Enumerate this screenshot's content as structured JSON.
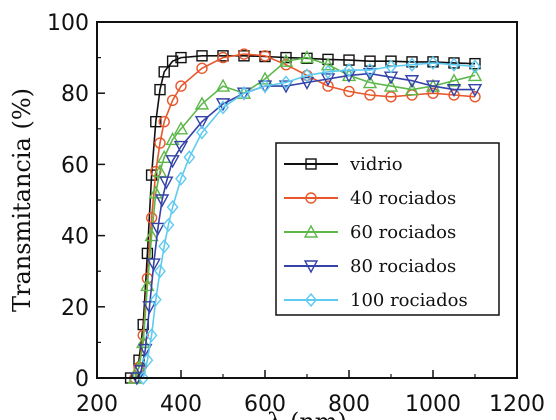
{
  "chart_data": {
    "type": "line",
    "title": "",
    "xlabel": "λ (nm)",
    "ylabel": "Transmitancia (%)",
    "xlim": [
      200,
      1200
    ],
    "ylim": [
      0,
      100
    ],
    "xticks": [
      200,
      400,
      600,
      800,
      1000,
      1200
    ],
    "yticks": [
      0,
      20,
      40,
      60,
      80,
      100
    ],
    "grid": false,
    "legend_position": "center-right",
    "series": [
      {
        "name": "vidrio",
        "color": "#111111",
        "marker": "square",
        "x": [
          280,
          300,
          310,
          320,
          330,
          340,
          350,
          360,
          380,
          400,
          450,
          500,
          550,
          600,
          650,
          700,
          750,
          800,
          850,
          900,
          950,
          1000,
          1050,
          1100
        ],
        "y": [
          0,
          5,
          15,
          35,
          57,
          72,
          81,
          86,
          89,
          90,
          90.5,
          90.5,
          90.5,
          90.3,
          90,
          89.8,
          89.5,
          89.3,
          89,
          89,
          88.8,
          88.8,
          88.5,
          88.3
        ]
      },
      {
        "name": "40 rociados",
        "color": "#e8582c",
        "marker": "circle",
        "x": [
          290,
          300,
          310,
          320,
          330,
          340,
          350,
          360,
          380,
          400,
          450,
          500,
          550,
          600,
          650,
          700,
          750,
          800,
          850,
          900,
          950,
          1000,
          1050,
          1100
        ],
        "y": [
          0,
          3,
          12,
          28,
          45,
          58,
          66,
          72,
          78,
          82,
          87,
          90,
          91,
          90.5,
          88,
          85,
          82,
          80.5,
          79.5,
          79,
          79.5,
          80,
          79.5,
          79
        ]
      },
      {
        "name": "60 rociados",
        "color": "#5db84a",
        "marker": "triangle-up",
        "x": [
          290,
          300,
          310,
          320,
          330,
          340,
          350,
          360,
          380,
          400,
          450,
          500,
          550,
          600,
          650,
          700,
          750,
          800,
          850,
          900,
          950,
          1000,
          1050,
          1100
        ],
        "y": [
          0,
          3,
          10,
          26,
          40,
          52,
          58,
          62,
          67,
          70,
          77,
          82,
          80,
          84,
          89,
          90,
          88,
          85,
          83,
          82,
          81,
          82,
          83.5,
          85
        ]
      },
      {
        "name": "80 rociados",
        "color": "#3542a8",
        "marker": "triangle-down",
        "x": [
          295,
          305,
          315,
          325,
          335,
          345,
          355,
          365,
          380,
          400,
          450,
          500,
          550,
          600,
          650,
          700,
          750,
          800,
          850,
          900,
          950,
          1000,
          1050,
          1100
        ],
        "y": [
          0,
          2,
          8,
          20,
          32,
          42,
          50,
          55,
          61,
          65,
          72,
          77,
          80,
          82,
          82,
          83,
          84,
          85,
          85.5,
          84.5,
          83.5,
          82,
          81,
          81
        ]
      },
      {
        "name": "100 rociados",
        "color": "#5fcaf0",
        "marker": "diamond",
        "x": [
          310,
          320,
          330,
          340,
          350,
          360,
          370,
          380,
          400,
          420,
          450,
          500,
          550,
          600,
          650,
          700,
          750,
          800,
          850,
          900,
          950,
          1000,
          1050,
          1100
        ],
        "y": [
          0,
          5,
          12,
          22,
          30,
          37,
          43,
          48,
          56,
          62,
          69,
          76,
          80,
          82,
          83,
          85,
          86,
          86.5,
          86.5,
          87.5,
          88,
          88.5,
          88,
          87.5
        ]
      }
    ]
  }
}
